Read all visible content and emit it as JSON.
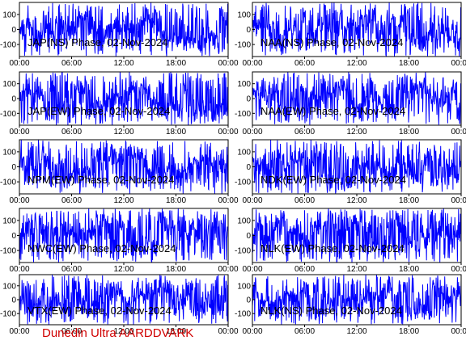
{
  "footer_text": "Dunedin Ultra AARDDVARK",
  "colors": {
    "trace": "#0000ff",
    "frame": "#000000",
    "footer": "#d00000",
    "background": "#ffffff"
  },
  "chart_data": [
    {
      "type": "line",
      "title": "JAP(NS) Phase, 02-Nov-2024",
      "ylim": [
        -180,
        180
      ],
      "yticks": [
        100,
        0,
        -100
      ],
      "xticks": [
        "00:00",
        "06:00",
        "12:00",
        "18:00",
        "00:00"
      ],
      "grid": false,
      "yaxis_side": "left"
    },
    {
      "type": "line",
      "title": "NAA(NS) Phase, 02-Nov-2024",
      "ylim": [
        -180,
        180
      ],
      "yticks": [
        100,
        0,
        -100
      ],
      "xticks": [
        "00:00",
        "06:00",
        "12:00",
        "18:00",
        "00:00"
      ],
      "grid": false,
      "yaxis_side": "right"
    },
    {
      "type": "line",
      "title": "JAP(EW) Phase, 02-Nov-2024",
      "ylim": [
        -180,
        180
      ],
      "yticks": [
        100,
        0,
        -100
      ],
      "xticks": [
        "00:00",
        "06:00",
        "12:00",
        "18:00",
        "00:00"
      ],
      "grid": false,
      "yaxis_side": "left"
    },
    {
      "type": "line",
      "title": "NAA(EW) Phase, 02-Nov-2024",
      "ylim": [
        -180,
        180
      ],
      "yticks": [
        100,
        0,
        -100
      ],
      "xticks": [
        "00:00",
        "06:00",
        "12:00",
        "18:00",
        "00:00"
      ],
      "grid": false,
      "yaxis_side": "right"
    },
    {
      "type": "line",
      "title": "NPM(EW) Phase, 02-Nov-2024",
      "ylim": [
        -180,
        180
      ],
      "yticks": [
        100,
        0,
        -100
      ],
      "xticks": [
        "00:00",
        "06:00",
        "12:00",
        "18:00",
        "00:00"
      ],
      "grid": false,
      "yaxis_side": "left"
    },
    {
      "type": "line",
      "title": "NDK(EW) Phase, 02-Nov-2024",
      "ylim": [
        -180,
        180
      ],
      "yticks": [
        100,
        0,
        -100
      ],
      "xticks": [
        "00:00",
        "06:00",
        "12:00",
        "18:00",
        "00:00"
      ],
      "grid": false,
      "yaxis_side": "right"
    },
    {
      "type": "line",
      "title": "NWC(EW) Phase, 02-Nov-2024",
      "ylim": [
        -180,
        180
      ],
      "yticks": [
        100,
        0,
        -100
      ],
      "xticks": [
        "00:00",
        "06:00",
        "12:00",
        "18:00",
        "00:00"
      ],
      "grid": false,
      "yaxis_side": "left"
    },
    {
      "type": "line",
      "title": "NLK(EW) Phase, 02-Nov-2024",
      "ylim": [
        -180,
        180
      ],
      "yticks": [
        100,
        0,
        -100
      ],
      "xticks": [
        "00:00",
        "06:00",
        "12:00",
        "18:00",
        "00:00"
      ],
      "grid": false,
      "yaxis_side": "right"
    },
    {
      "type": "line",
      "title": "VTX(EW) Phase, 02-Nov-2024",
      "ylim": [
        -180,
        180
      ],
      "yticks": [
        100,
        0,
        -100
      ],
      "xticks": [
        "00:00",
        "06:00",
        "12:00",
        "18:00",
        "00:00"
      ],
      "grid": false,
      "yaxis_side": "left"
    },
    {
      "type": "line",
      "title": "NLK(NS) Phase, 02-Nov-2024",
      "ylim": [
        -180,
        180
      ],
      "yticks": [
        100,
        0,
        -100
      ],
      "xticks": [
        "00:00",
        "06:00",
        "12:00",
        "18:00",
        "00:00"
      ],
      "grid": false,
      "yaxis_side": "right"
    }
  ]
}
